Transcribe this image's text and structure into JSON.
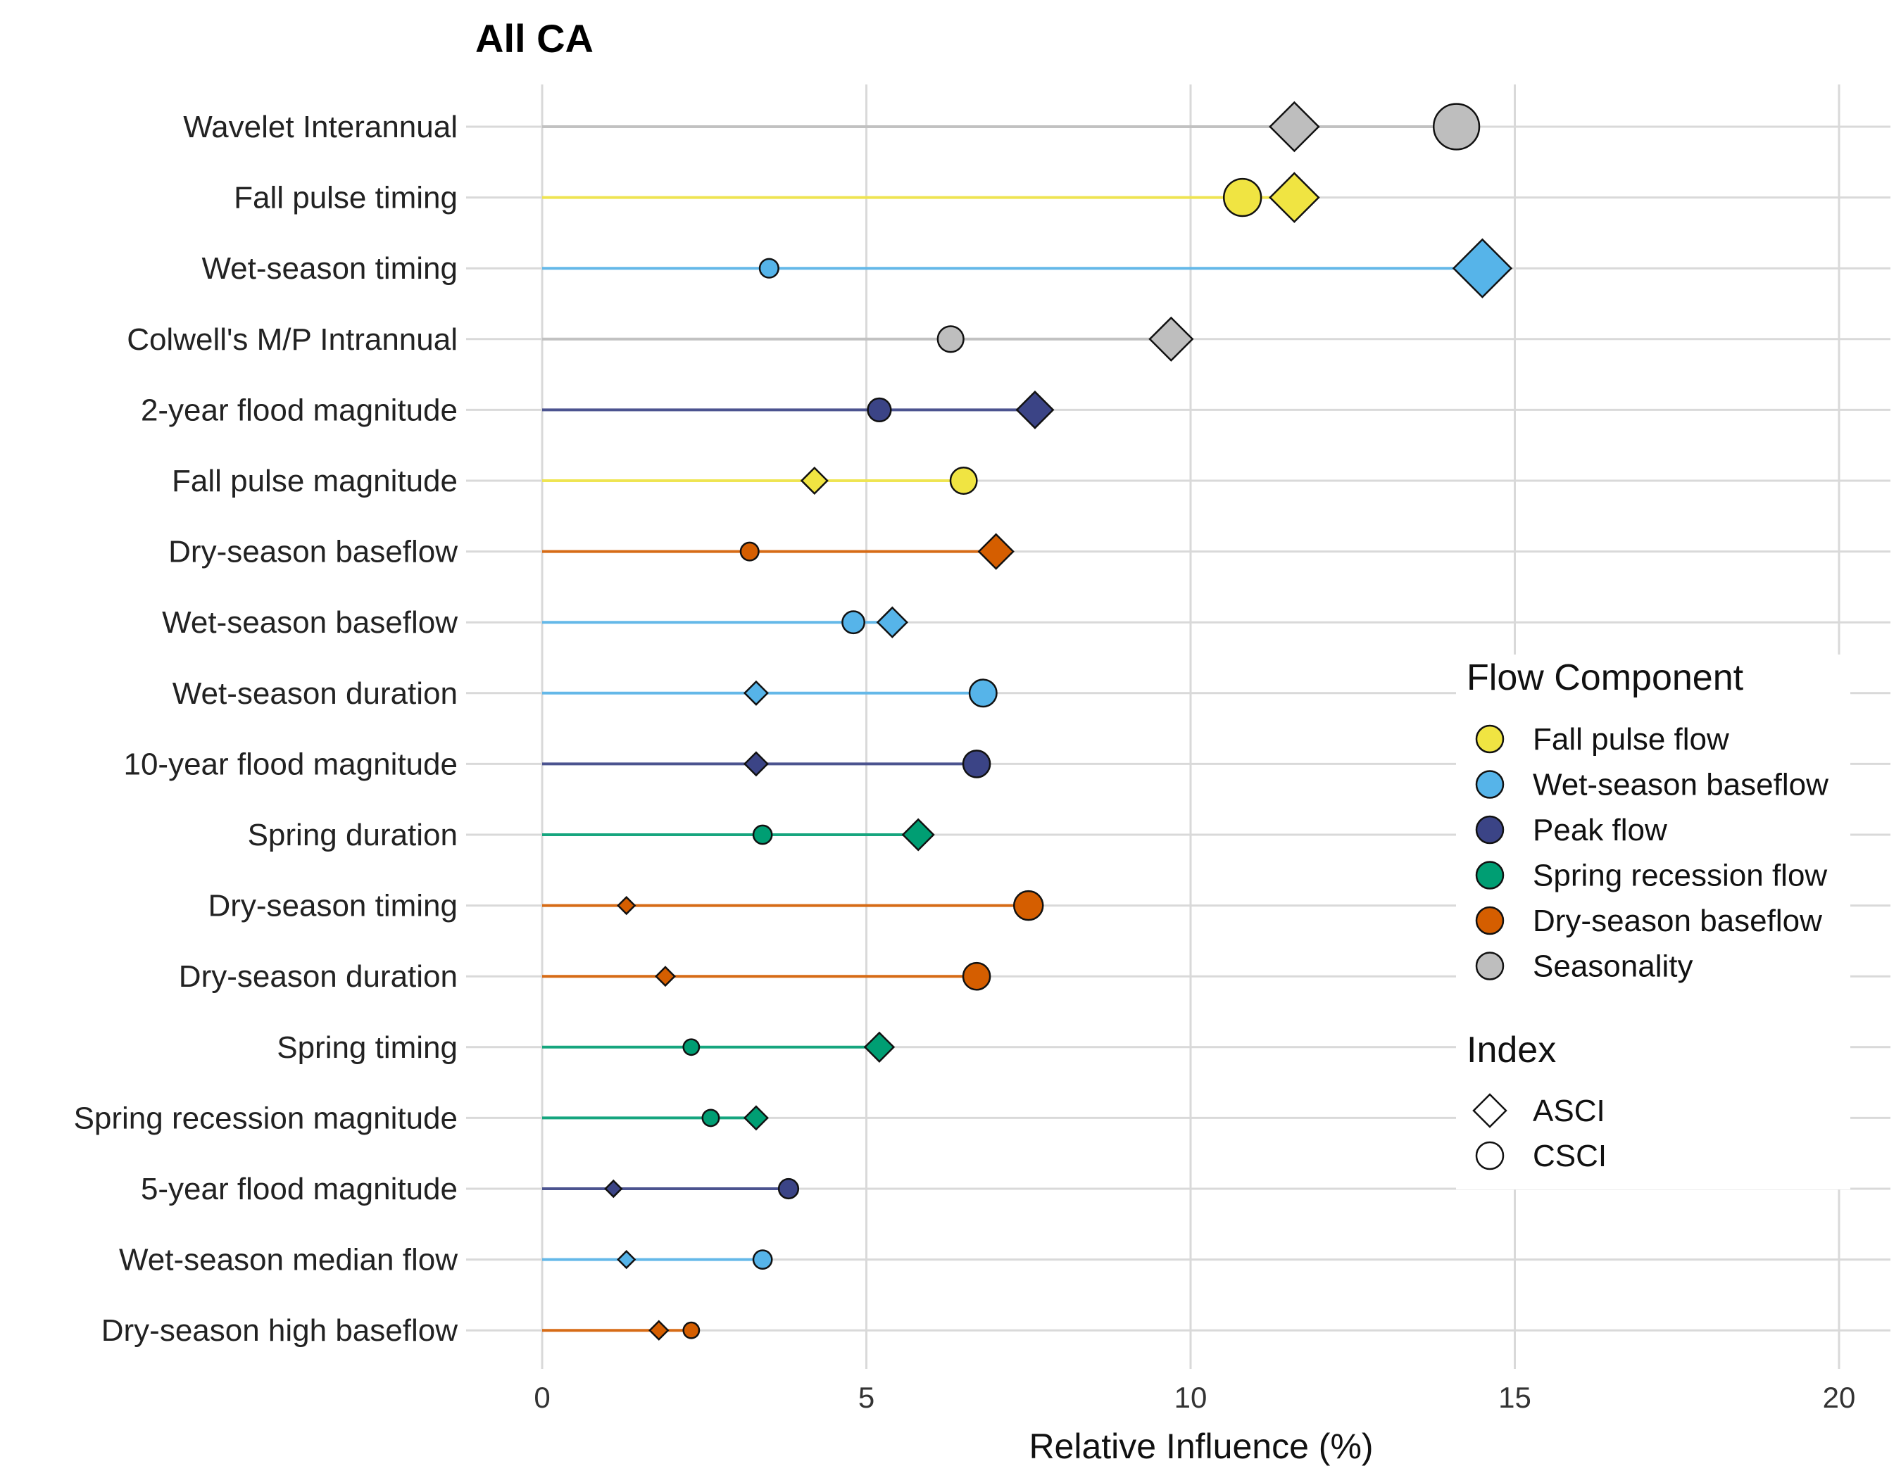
{
  "chart_data": {
    "type": "dot-range",
    "title": "All CA",
    "xlabel": "Relative Influence (%)",
    "ylabel": "",
    "xlim": [
      0,
      20
    ],
    "xticks": [
      0,
      5,
      10,
      15,
      20
    ],
    "grid": true,
    "legend_position": "right",
    "components": [
      {
        "name": "Fall pulse flow",
        "color": "#f0e442"
      },
      {
        "name": "Wet-season baseflow",
        "color": "#56b4e9"
      },
      {
        "name": "Peak flow",
        "color": "#3b4486"
      },
      {
        "name": "Spring recession flow",
        "color": "#009e73"
      },
      {
        "name": "Dry-season baseflow",
        "color": "#d55e00"
      },
      {
        "name": "Seasonality",
        "color": "#bebebe"
      }
    ],
    "index_legend": [
      {
        "name": "ASCI",
        "shape": "diamond"
      },
      {
        "name": "CSCI",
        "shape": "circle"
      }
    ],
    "rows": [
      {
        "metric": "Wavelet Interannual",
        "component": "Seasonality",
        "asci": 11.6,
        "csci": 14.1
      },
      {
        "metric": "Fall pulse timing",
        "component": "Fall pulse flow",
        "asci": 11.6,
        "csci": 10.8
      },
      {
        "metric": "Wet-season timing",
        "component": "Wet-season baseflow",
        "asci": 14.5,
        "csci": 3.5
      },
      {
        "metric": "Colwell's M/P Intrannual",
        "component": "Seasonality",
        "asci": 9.7,
        "csci": 6.3
      },
      {
        "metric": "2-year flood magnitude",
        "component": "Peak flow",
        "asci": 7.6,
        "csci": 5.2
      },
      {
        "metric": "Fall pulse magnitude",
        "component": "Fall pulse flow",
        "asci": 4.2,
        "csci": 6.5
      },
      {
        "metric": "Dry-season baseflow",
        "component": "Dry-season baseflow",
        "asci": 7.0,
        "csci": 3.2
      },
      {
        "metric": "Wet-season baseflow",
        "component": "Wet-season baseflow",
        "asci": 5.4,
        "csci": 4.8
      },
      {
        "metric": "Wet-season duration",
        "component": "Wet-season baseflow",
        "asci": 3.3,
        "csci": 6.8
      },
      {
        "metric": "10-year flood magnitude",
        "component": "Peak flow",
        "asci": 3.3,
        "csci": 6.7
      },
      {
        "metric": "Spring duration",
        "component": "Spring recession flow",
        "asci": 5.8,
        "csci": 3.4
      },
      {
        "metric": "Dry-season timing",
        "component": "Dry-season baseflow",
        "asci": 1.3,
        "csci": 7.5
      },
      {
        "metric": "Dry-season duration",
        "component": "Dry-season baseflow",
        "asci": 1.9,
        "csci": 6.7
      },
      {
        "metric": "Spring timing",
        "component": "Spring recession flow",
        "asci": 5.2,
        "csci": 2.3
      },
      {
        "metric": "Spring recession magnitude",
        "component": "Spring recession flow",
        "asci": 3.3,
        "csci": 2.6
      },
      {
        "metric": "5-year flood magnitude",
        "component": "Peak flow",
        "asci": 1.1,
        "csci": 3.8
      },
      {
        "metric": "Wet-season median flow",
        "component": "Wet-season baseflow",
        "asci": 1.3,
        "csci": 3.4
      },
      {
        "metric": "Dry-season high baseflow",
        "component": "Dry-season baseflow",
        "asci": 1.8,
        "csci": 2.3
      }
    ],
    "legend": {
      "component_title": "Flow Component",
      "index_title": "Index"
    }
  }
}
